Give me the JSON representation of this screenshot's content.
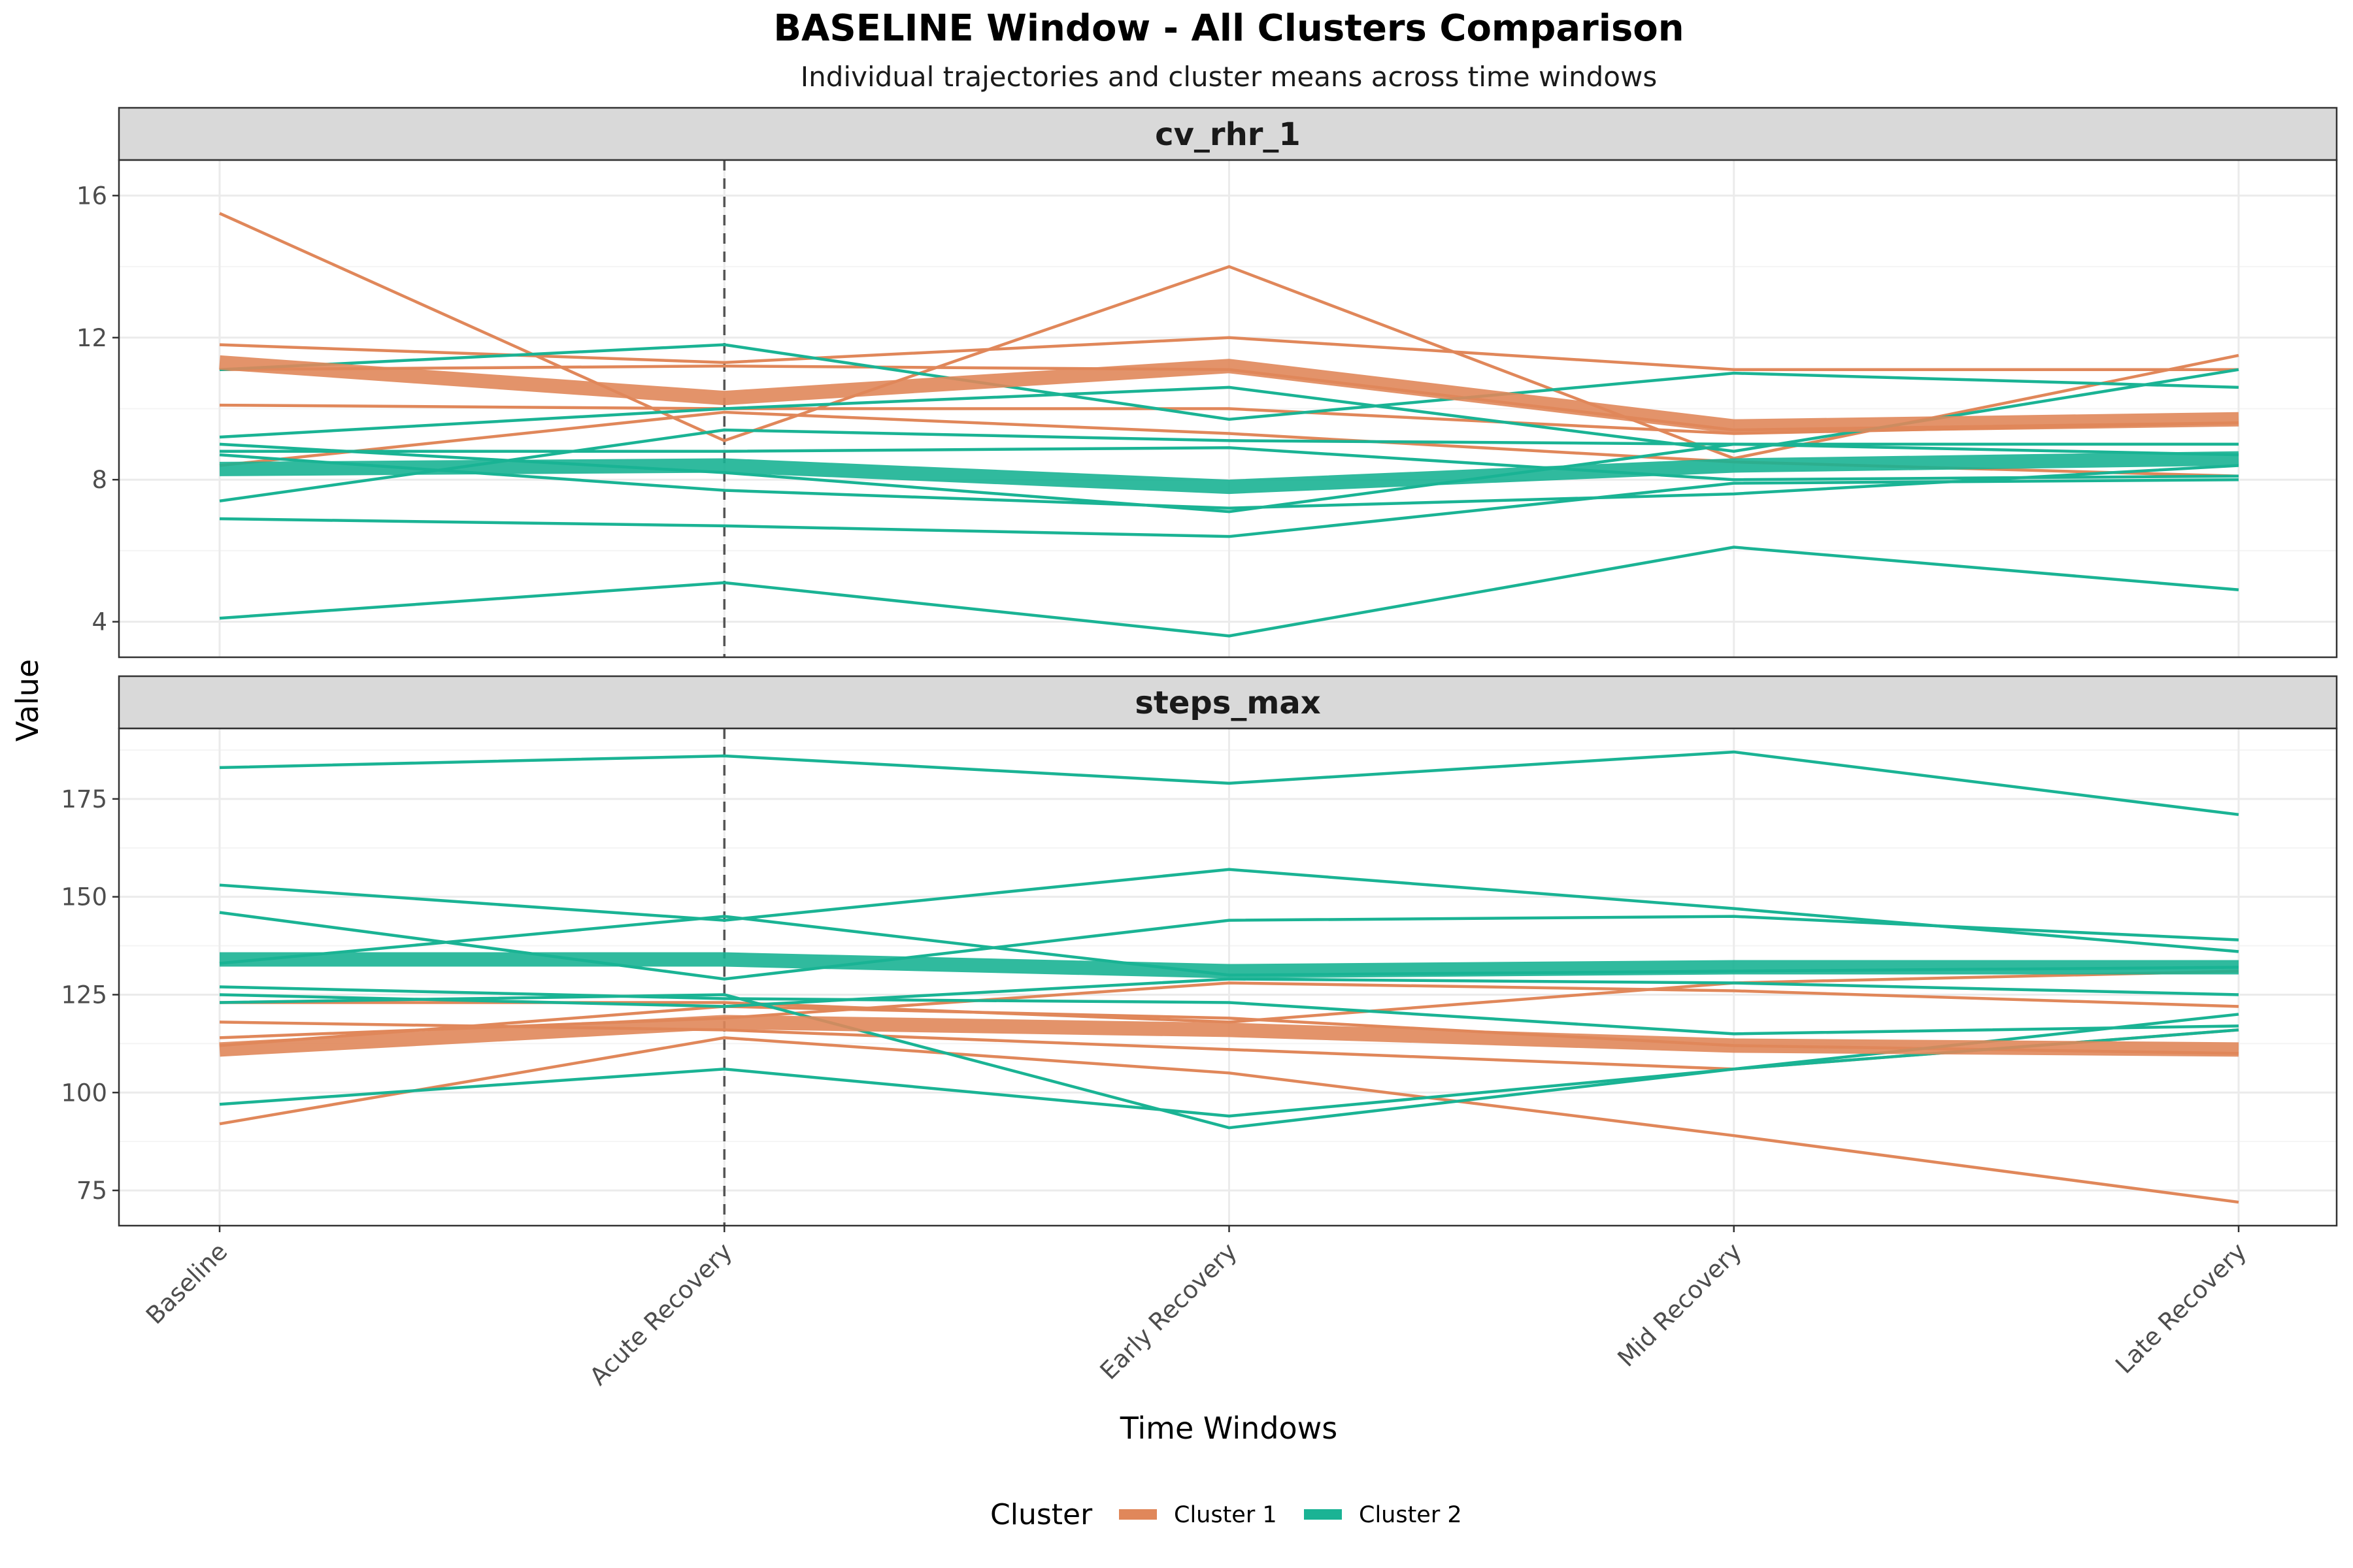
{
  "chart_data": {
    "type": "line",
    "title": "BASELINE Window - All Clusters Comparison",
    "subtitle": "Individual trajectories and cluster means across time windows",
    "xlabel": "Time Windows",
    "ylabel": "Value",
    "categories": [
      "Baseline",
      "Acute Recovery",
      "Early Recovery",
      "Mid Recovery",
      "Late Recovery"
    ],
    "reference_line": {
      "category": "Acute Recovery",
      "style": "dashed"
    },
    "legend": {
      "title": "Cluster",
      "position": "bottom",
      "entries": [
        {
          "name": "Cluster 1",
          "color": "#E0875A"
        },
        {
          "name": "Cluster 2",
          "color": "#1AB394"
        }
      ]
    },
    "grid": true,
    "panels": [
      {
        "name": "cv_rhr_1",
        "ylim": [
          3,
          17
        ],
        "yticks": [
          4,
          8,
          12,
          16
        ],
        "individuals": [
          {
            "cluster": "Cluster 1",
            "values": [
              15.5,
              9.1,
              14.0,
              8.6,
              11.5
            ]
          },
          {
            "cluster": "Cluster 1",
            "values": [
              11.8,
              11.3,
              12.0,
              11.1,
              11.1
            ]
          },
          {
            "cluster": "Cluster 1",
            "values": [
              11.1,
              11.2,
              11.1,
              9.4,
              9.6
            ]
          },
          {
            "cluster": "Cluster 1",
            "values": [
              10.1,
              10.0,
              10.0,
              9.3,
              9.6
            ]
          },
          {
            "cluster": "Cluster 1",
            "values": [
              8.4,
              9.9,
              9.3,
              8.5,
              8.1
            ]
          },
          {
            "cluster": "Cluster 2",
            "values": [
              11.1,
              11.8,
              9.7,
              11.0,
              10.6
            ]
          },
          {
            "cluster": "Cluster 2",
            "values": [
              9.2,
              10.0,
              10.6,
              8.8,
              11.1
            ]
          },
          {
            "cluster": "Cluster 2",
            "values": [
              9.0,
              8.2,
              7.1,
              9.0,
              8.7
            ]
          },
          {
            "cluster": "Cluster 2",
            "values": [
              8.8,
              8.8,
              8.9,
              8.0,
              8.1
            ]
          },
          {
            "cluster": "Cluster 2",
            "values": [
              7.4,
              9.4,
              9.1,
              9.0,
              9.0
            ]
          },
          {
            "cluster": "Cluster 2",
            "values": [
              8.7,
              7.7,
              7.2,
              7.6,
              8.4
            ]
          },
          {
            "cluster": "Cluster 2",
            "values": [
              6.9,
              6.7,
              6.4,
              7.9,
              8.0
            ]
          },
          {
            "cluster": "Cluster 2",
            "values": [
              4.1,
              5.1,
              3.6,
              6.1,
              4.9
            ]
          }
        ],
        "means": [
          {
            "cluster": "Cluster 1",
            "values": [
              11.3,
              10.3,
              11.2,
              9.5,
              9.7
            ]
          },
          {
            "cluster": "Cluster 2",
            "values": [
              8.3,
              8.4,
              7.8,
              8.4,
              8.6
            ]
          }
        ]
      },
      {
        "name": "steps_max",
        "ylim": [
          66,
          193
        ],
        "yticks": [
          75,
          100,
          125,
          150,
          175
        ],
        "individuals": [
          {
            "cluster": "Cluster 1",
            "values": [
              118,
              116,
              111,
              106,
              116
            ]
          },
          {
            "cluster": "Cluster 1",
            "values": [
              114,
              119,
              128,
              126,
              122
            ]
          },
          {
            "cluster": "Cluster 1",
            "values": [
              123,
              123,
              118,
              128,
              131
            ]
          },
          {
            "cluster": "Cluster 1",
            "values": [
              112,
              122,
              119,
              112,
              110
            ]
          },
          {
            "cluster": "Cluster 1",
            "values": [
              92,
              114,
              105,
              89,
              72
            ]
          },
          {
            "cluster": "Cluster 2",
            "values": [
              183,
              186,
              179,
              187,
              171
            ]
          },
          {
            "cluster": "Cluster 2",
            "values": [
              153,
              144,
              157,
              147,
              136
            ]
          },
          {
            "cluster": "Cluster 2",
            "values": [
              146,
              129,
              144,
              145,
              139
            ]
          },
          {
            "cluster": "Cluster 2",
            "values": [
              133,
              145,
              130,
              131,
              132
            ]
          },
          {
            "cluster": "Cluster 2",
            "values": [
              127,
              124,
              123,
              115,
              117
            ]
          },
          {
            "cluster": "Cluster 2",
            "values": [
              123,
              125,
              91,
              106,
              116
            ]
          },
          {
            "cluster": "Cluster 2",
            "values": [
              125,
              122,
              129,
              128,
              125
            ]
          },
          {
            "cluster": "Cluster 2",
            "values": [
              97,
              106,
              94,
              106,
              120
            ]
          }
        ],
        "means": [
          {
            "cluster": "Cluster 1",
            "values": [
              111,
              118,
              116,
              112,
              111
            ]
          },
          {
            "cluster": "Cluster 2",
            "values": [
              134,
              134,
              131,
              132,
              132
            ]
          }
        ]
      }
    ]
  }
}
